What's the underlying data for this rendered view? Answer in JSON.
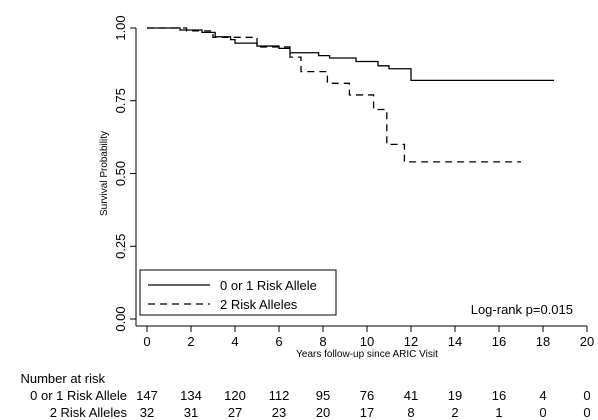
{
  "chart_data": {
    "type": "line",
    "xlabel": "Years follow-up since ARIC Visit",
    "ylabel": "Survival Probability",
    "xlim": [
      0,
      20
    ],
    "ylim": [
      0,
      1
    ],
    "x_ticks": [
      0,
      2,
      4,
      6,
      8,
      10,
      12,
      14,
      16,
      18,
      20
    ],
    "y_ticks": [
      0.0,
      0.25,
      0.5,
      0.75,
      1.0
    ],
    "x_tick_labels": [
      "0",
      "2",
      "4",
      "6",
      "8",
      "10",
      "12",
      "14",
      "16",
      "18",
      "20"
    ],
    "y_tick_labels": [
      "0.00",
      "0.25",
      "0.50",
      "0.75",
      "1.00"
    ],
    "grid": false,
    "legend_position": "bottom-left",
    "annotation": "Log-rank p=0.015",
    "series": [
      {
        "name": "0 or 1 Risk Allele",
        "style": "solid",
        "steps": [
          [
            0,
            1.0
          ],
          [
            1.5,
            0.993
          ],
          [
            2.5,
            0.985
          ],
          [
            3.1,
            0.97
          ],
          [
            3.8,
            0.96
          ],
          [
            4.0,
            0.948
          ],
          [
            5.0,
            0.938
          ],
          [
            6.0,
            0.93
          ],
          [
            6.5,
            0.915
          ],
          [
            7.8,
            0.905
          ],
          [
            8.3,
            0.897
          ],
          [
            9.5,
            0.885
          ],
          [
            10.5,
            0.87
          ],
          [
            11.0,
            0.86
          ],
          [
            12.0,
            0.82
          ],
          [
            18.5,
            0.82
          ]
        ]
      },
      {
        "name": "2 Risk Alleles",
        "style": "dashed",
        "steps": [
          [
            0,
            1.0
          ],
          [
            1.8,
            0.99
          ],
          [
            3.0,
            0.968
          ],
          [
            5.0,
            0.935
          ],
          [
            6.5,
            0.9
          ],
          [
            7.0,
            0.85
          ],
          [
            8.2,
            0.81
          ],
          [
            9.2,
            0.77
          ],
          [
            10.3,
            0.72
          ],
          [
            10.9,
            0.6
          ],
          [
            11.7,
            0.54
          ],
          [
            17.0,
            0.54
          ]
        ]
      }
    ],
    "risk_table": {
      "title": "Number at risk",
      "times": [
        0,
        2,
        4,
        6,
        8,
        10,
        12,
        14,
        16,
        18,
        20
      ],
      "rows": [
        {
          "label": "0 or 1 Risk Allele",
          "values": [
            "147",
            "134",
            "120",
            "112",
            "95",
            "76",
            "41",
            "19",
            "16",
            "4",
            "0"
          ]
        },
        {
          "label": "2 Risk Alleles",
          "values": [
            "32",
            "31",
            "27",
            "23",
            "20",
            "17",
            "8",
            "2",
            "1",
            "0",
            "0"
          ]
        }
      ]
    }
  }
}
